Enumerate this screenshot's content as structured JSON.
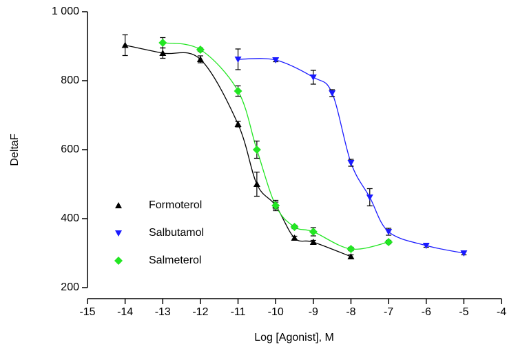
{
  "chart_data": {
    "type": "scatter",
    "x_label": "Log [Agonist], M",
    "y_label": "DeltaF",
    "xlim": [
      -15,
      -4
    ],
    "xticks": [
      -15,
      -14,
      -13,
      -12,
      -11,
      -10,
      -9,
      -8,
      -7,
      -6,
      -5,
      -4
    ],
    "ylim": [
      200,
      1000
    ],
    "yticks": [
      200,
      400,
      600,
      800,
      {
        "value": 1000,
        "label": "1 000"
      }
    ],
    "legend": "lower left",
    "fit_curve": true,
    "series": [
      {
        "name": "Formoterol",
        "color": "#000000",
        "marker": "triangle-up",
        "x": [
          -14,
          -13,
          -12,
          -11,
          -10.5,
          -10,
          -9.5,
          -9,
          -8
        ],
        "values": [
          903,
          880,
          862,
          674,
          500,
          438,
          344,
          332,
          290
        ],
        "errors": [
          30,
          15,
          10,
          8,
          35,
          10,
          5,
          5,
          5
        ]
      },
      {
        "name": "Salbutamol",
        "color": "#1a1aff",
        "marker": "triangle-down",
        "x": [
          -11,
          -10,
          -9,
          -8.5,
          -8,
          -7.5,
          -7,
          -6,
          -5
        ],
        "values": [
          862,
          860,
          810,
          764,
          562,
          462,
          362,
          322,
          300
        ],
        "errors": [
          30,
          5,
          20,
          10,
          10,
          25,
          10,
          5,
          5
        ]
      },
      {
        "name": "Salmeterol",
        "color": "#22e622",
        "marker": "diamond",
        "x": [
          -13,
          -12,
          -11,
          -10.5,
          -10,
          -9.5,
          -9,
          -8,
          -7
        ],
        "values": [
          910,
          890,
          770,
          600,
          438,
          376,
          362,
          312,
          332
        ],
        "errors": [
          15,
          5,
          15,
          25,
          15,
          5,
          12,
          5,
          5
        ]
      }
    ]
  }
}
